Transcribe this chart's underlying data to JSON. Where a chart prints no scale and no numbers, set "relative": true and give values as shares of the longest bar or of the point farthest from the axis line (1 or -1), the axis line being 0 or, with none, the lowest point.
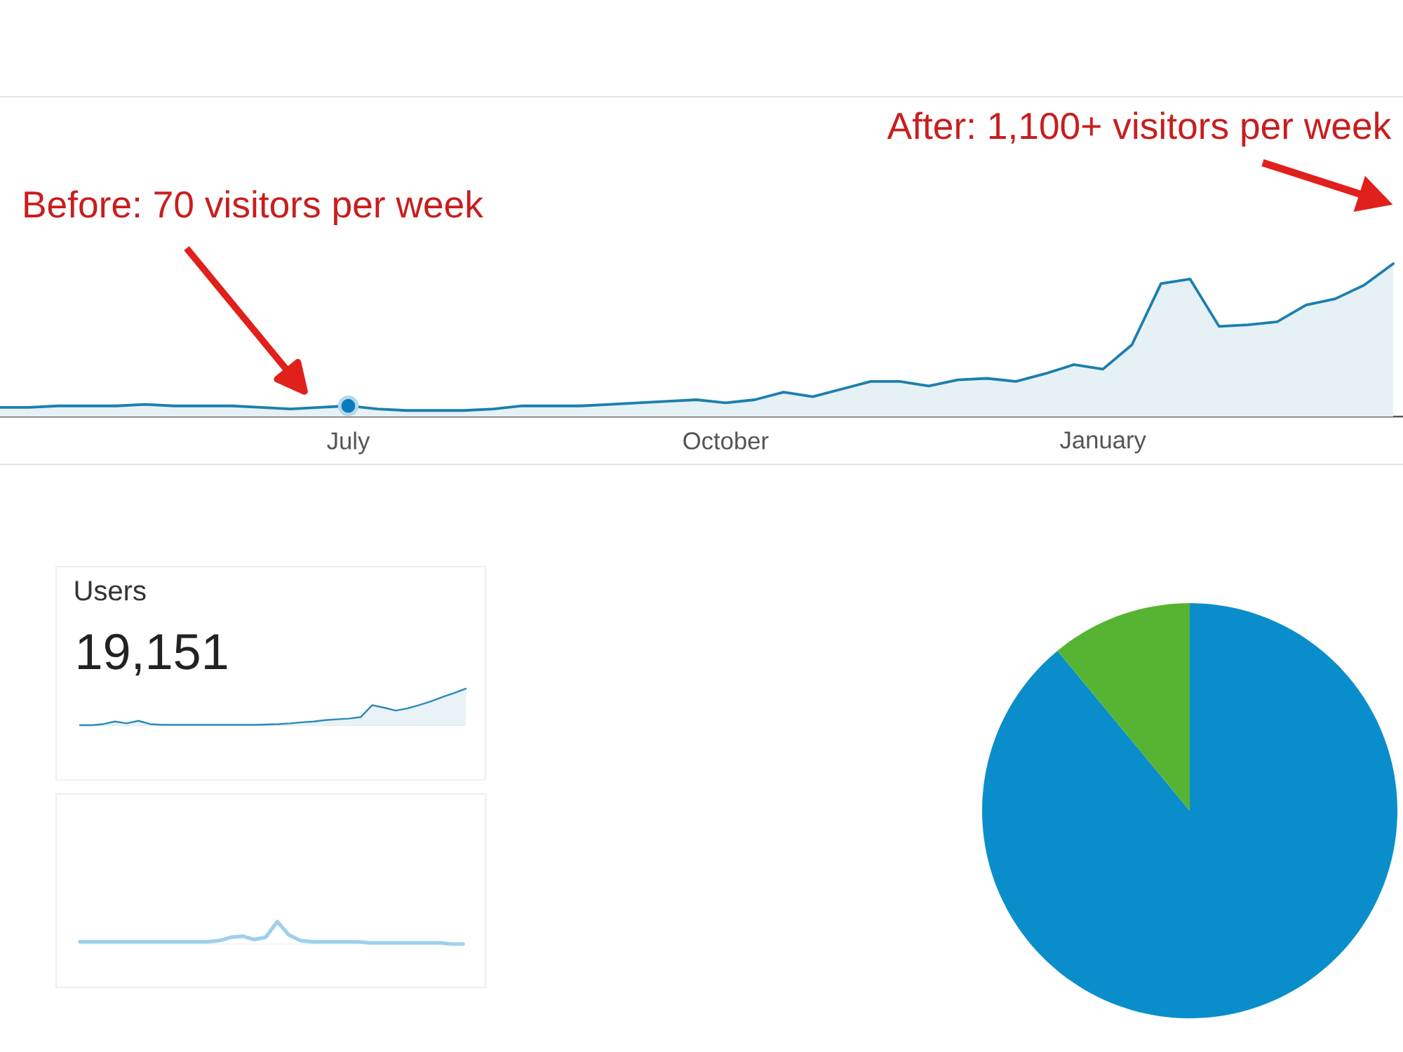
{
  "chart_data": [
    {
      "type": "area",
      "categories": [
        null,
        null,
        null,
        null,
        null,
        null,
        null,
        null,
        null,
        null,
        null,
        null,
        "July",
        null,
        null,
        null,
        null,
        null,
        null,
        null,
        null,
        null,
        null,
        null,
        null,
        "October",
        null,
        null,
        null,
        null,
        null,
        null,
        null,
        null,
        null,
        null,
        null,
        null,
        "January",
        null,
        null,
        null,
        null,
        null,
        null,
        null,
        null,
        null,
        null
      ],
      "relative": true,
      "series": [
        {
          "color": "#1b7fae",
          "values": [
            0.06,
            0.06,
            0.07,
            0.07,
            0.07,
            0.08,
            0.07,
            0.07,
            0.07,
            0.06,
            0.05,
            0.06,
            0.07,
            0.05,
            0.04,
            0.04,
            0.04,
            0.05,
            0.07,
            0.07,
            0.07,
            0.08,
            0.09,
            0.1,
            0.11,
            0.09,
            0.11,
            0.16,
            0.13,
            0.18,
            0.23,
            0.23,
            0.2,
            0.24,
            0.25,
            0.23,
            0.28,
            0.34,
            0.31,
            0.47,
            0.87,
            0.9,
            0.59,
            0.6,
            0.62,
            0.73,
            0.77,
            0.86,
            1
          ]
        },
        {
          "type": "scatter",
          "marker": "circle",
          "color": "#0b7bbd",
          "values": [
            null,
            null,
            null,
            null,
            null,
            null,
            null,
            null,
            null,
            null,
            null,
            null,
            0.07,
            null,
            null,
            null,
            null,
            null,
            null,
            null,
            null,
            null,
            null,
            null,
            null,
            null,
            null,
            null,
            null,
            null,
            null,
            null,
            null,
            null,
            null,
            null,
            null,
            null,
            null,
            null,
            null,
            null,
            null,
            null,
            null,
            null,
            null,
            null,
            null
          ]
        }
      ],
      "annotations": [
        "Before: 70 visitors per week",
        "After: 1,100+ visitors per week"
      ]
    },
    {
      "type": "area",
      "title": "Users",
      "subtitle": "19,151",
      "categories": [
        null,
        null,
        null,
        null,
        null,
        null,
        null,
        null,
        null,
        null,
        null,
        null,
        null,
        null,
        null,
        null,
        null,
        null,
        null,
        null,
        null,
        null,
        null,
        null,
        null,
        null,
        null,
        null,
        null,
        null,
        null,
        null,
        null,
        null
      ],
      "values": [
        0,
        0,
        0.03,
        0.1,
        0.05,
        0.12,
        0.03,
        0.01,
        0.01,
        0.01,
        0.01,
        0.01,
        0.01,
        0.01,
        0.01,
        0.01,
        0.02,
        0.03,
        0.05,
        0.08,
        0.1,
        0.14,
        0.16,
        0.18,
        0.22,
        0.55,
        0.48,
        0.4,
        0.46,
        0.55,
        0.65,
        0.77,
        0.88,
        1
      ],
      "color": "#2a8ab8",
      "relative": true
    },
    {
      "type": "line",
      "categories": [
        null,
        null,
        null,
        null,
        null,
        null,
        null,
        null,
        null,
        null,
        null,
        null,
        null,
        null,
        null,
        null,
        null,
        null,
        null,
        null,
        null,
        null,
        null,
        null,
        null,
        null,
        null,
        null,
        null,
        null,
        null,
        null,
        null,
        null
      ],
      "values": [
        0.1,
        0.1,
        0.1,
        0.1,
        0.1,
        0.1,
        0.1,
        0.1,
        0.1,
        0.1,
        0.1,
        0.1,
        0.15,
        0.3,
        0.35,
        0.2,
        0.3,
        1,
        0.4,
        0.15,
        0.1,
        0.1,
        0.1,
        0.1,
        0.1,
        0.05,
        0.05,
        0.05,
        0.05,
        0.05,
        0.05,
        0.05,
        0,
        0
      ],
      "color": "#9fd0ea",
      "relative": true
    },
    {
      "type": "pie",
      "categories": [
        null,
        null
      ],
      "values": [
        89,
        11
      ],
      "colors": [
        "#0a8ecb",
        "#56b432"
      ]
    }
  ]
}
